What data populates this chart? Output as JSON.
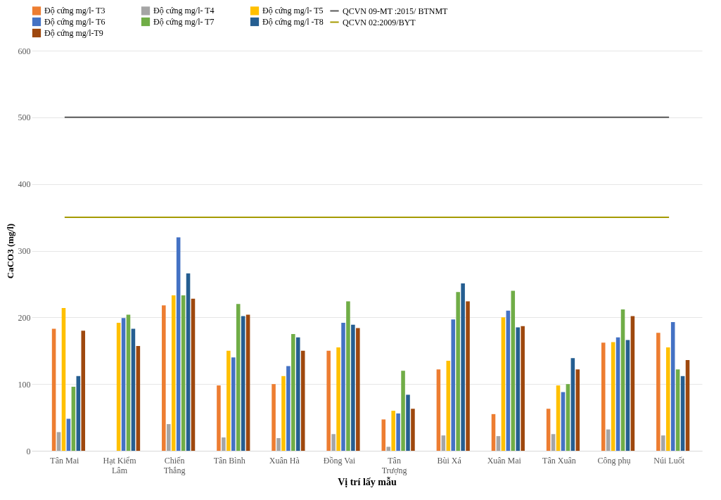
{
  "chart_data": {
    "type": "bar",
    "xlabel": "Vị trí lấy mẫu",
    "ylabel": "CaCO3 (mg/l)",
    "categories": [
      "Tân Mai",
      "Hạt Kiểm Lâm",
      "Chiến Thắng",
      "Tân Bình",
      "Xuân Hà",
      "Đồng Vai",
      "Tân Trượng",
      "Bùi Xá",
      "Xuân Mai",
      "Tân Xuân",
      "Công phụ",
      "Núi Luốt"
    ],
    "series": [
      {
        "name": "Độ cứng mg/l- T3",
        "color": "#ed7d31",
        "values": [
          183,
          null,
          218,
          98,
          100,
          150,
          47,
          122,
          55,
          63,
          162,
          177
        ]
      },
      {
        "name": "Độ cứng mg/l- T4",
        "color": "#a5a5a5",
        "values": [
          28,
          null,
          40,
          20,
          19,
          25,
          6,
          23,
          22,
          25,
          32,
          23
        ]
      },
      {
        "name": "Độ cứng mg/l- T5",
        "color": "#ffc000",
        "values": [
          214,
          192,
          233,
          150,
          112,
          155,
          60,
          135,
          200,
          98,
          163,
          155
        ]
      },
      {
        "name": "Độ cứng mg/l- T6",
        "color": "#4472c4",
        "values": [
          48,
          199,
          320,
          140,
          127,
          192,
          56,
          197,
          210,
          88,
          170,
          193
        ]
      },
      {
        "name": "Độ cứng mg/l- T7",
        "color": "#70ad47",
        "values": [
          96,
          204,
          233,
          220,
          175,
          224,
          120,
          238,
          240,
          100,
          212,
          122
        ]
      },
      {
        "name": "Độ cứng mg/l -T8",
        "color": "#255e91",
        "values": [
          112,
          183,
          266,
          202,
          170,
          189,
          84,
          251,
          185,
          139,
          166,
          112
        ]
      },
      {
        "name": "Độ cứng mg/l-T9",
        "color": "#9e480e",
        "values": [
          180,
          157,
          228,
          204,
          150,
          184,
          63,
          224,
          187,
          122,
          202,
          136
        ]
      },
      {
        "name": "QCVN 09-MT :2015/ BTNMT",
        "type": "line",
        "color": "#595959",
        "values": [
          500,
          500,
          500,
          500,
          500,
          500,
          500,
          500,
          500,
          500,
          500,
          500
        ]
      },
      {
        "name": "QCVN 02:2009/BYT",
        "type": "line",
        "color": "#a59a00",
        "values": [
          350,
          350,
          350,
          350,
          350,
          350,
          350,
          350,
          350,
          350,
          350,
          350
        ]
      }
    ],
    "ylim": [
      0,
      600
    ],
    "yticks": [
      0,
      100,
      200,
      300,
      400,
      500,
      600
    ],
    "grid": "y",
    "legend": "top"
  }
}
